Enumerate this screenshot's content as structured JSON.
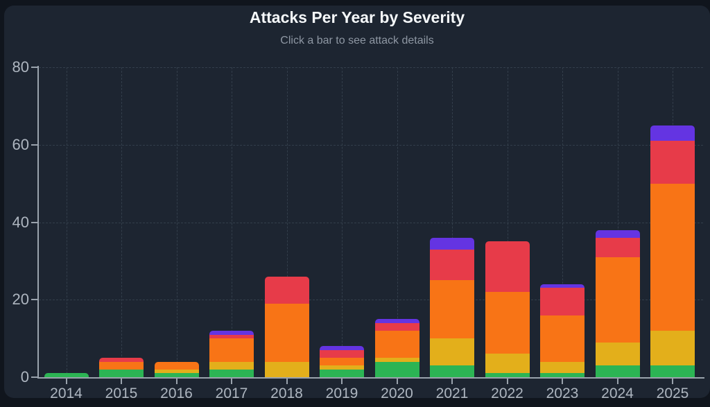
{
  "header": {
    "title": "Attacks Per Year by Severity",
    "subtitle": "Click a bar to see attack details"
  },
  "chart_data": {
    "type": "bar",
    "variant": "stacked",
    "title": "Attacks Per Year by Severity",
    "subtitle": "Click a bar to see attack details",
    "categories": [
      "2014",
      "2015",
      "2016",
      "2017",
      "2018",
      "2019",
      "2020",
      "2021",
      "2022",
      "2023",
      "2024",
      "2025"
    ],
    "series": [
      {
        "name": "green-severity",
        "color": "#2cb454",
        "values": [
          1,
          2,
          1,
          2,
          0,
          2,
          4,
          3,
          1,
          1,
          3,
          3
        ]
      },
      {
        "name": "yellow-severity",
        "color": "#e3af1b",
        "values": [
          0,
          0,
          1,
          2,
          4,
          1,
          1,
          7,
          5,
          3,
          6,
          9
        ]
      },
      {
        "name": "orange-severity",
        "color": "#f87416",
        "values": [
          0,
          2,
          2,
          6,
          15,
          2,
          7,
          15,
          16,
          12,
          22,
          38
        ]
      },
      {
        "name": "red-severity",
        "color": "#e73b49",
        "values": [
          0,
          1,
          0,
          1,
          7,
          2,
          2,
          8,
          13,
          7,
          5,
          11
        ]
      },
      {
        "name": "purple-severity",
        "color": "#6434e2",
        "values": [
          0,
          0,
          0,
          1,
          0,
          1,
          1,
          3,
          0,
          1,
          2,
          4
        ]
      }
    ],
    "totals": [
      1,
      5,
      4,
      12,
      26,
      8,
      15,
      36,
      35,
      24,
      38,
      65
    ],
    "xlabel": "",
    "ylabel": "",
    "ylim": [
      0,
      80
    ],
    "yticks": [
      0,
      20,
      40,
      60,
      80
    ],
    "grid": "dashed, horizontal at yticks and vertical at each category",
    "legend": "none"
  },
  "colors": {
    "page_background": "#10151d",
    "card_background": "#1d2531",
    "title_text": "#f5f8fa",
    "subtitle_text": "#8e97a3",
    "axis_line": "#9aa3ad",
    "tick_label": "#aeb6c0",
    "gridline": "#333e4b"
  }
}
